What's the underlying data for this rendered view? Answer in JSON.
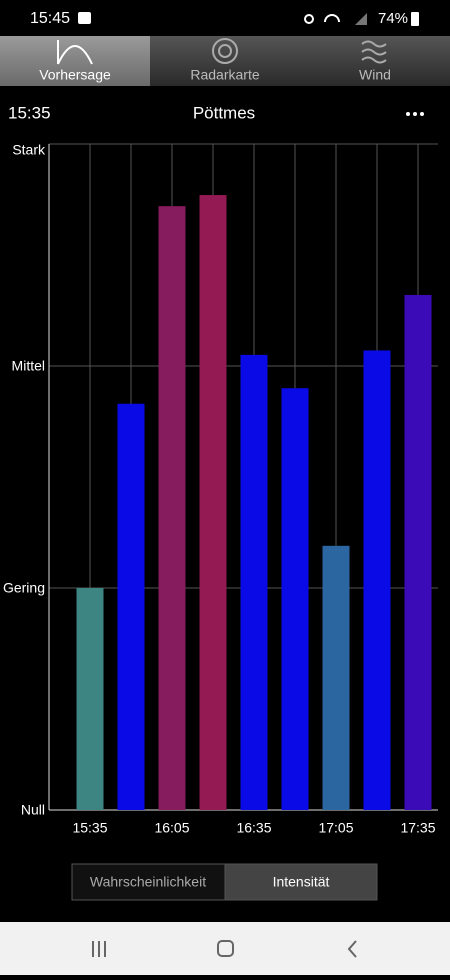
{
  "status": {
    "time": "15:45",
    "battery": "74%"
  },
  "tabs": [
    "Vorhersage",
    "Radarkarte",
    "Wind"
  ],
  "header": {
    "time": "15:35",
    "location": "Pöttmes"
  },
  "chart_data": {
    "type": "bar",
    "categories": [
      "15:35",
      null,
      "16:05",
      null,
      "16:35",
      null,
      "17:05",
      null,
      "17:35"
    ],
    "values": [
      1.0,
      1.83,
      2.72,
      2.77,
      2.05,
      1.9,
      1.19,
      2.07,
      2.32
    ],
    "colors": [
      "#3d8582",
      "#0a0ae6",
      "#861b5e",
      "#931a52",
      "#0a0ae6",
      "#0a0ae6",
      "#2c66a0",
      "#0a0ae6",
      "#3c0bb8"
    ],
    "ylim": [
      0,
      3
    ],
    "yticks": [
      {
        "value": 0,
        "label": "Null"
      },
      {
        "value": 1,
        "label": "Gering"
      },
      {
        "value": 2,
        "label": "Mittel"
      },
      {
        "value": 3,
        "label": "Stark"
      }
    ],
    "grid": true
  },
  "toggle": [
    "Wahrscheinlichkeit",
    "Intensität"
  ]
}
